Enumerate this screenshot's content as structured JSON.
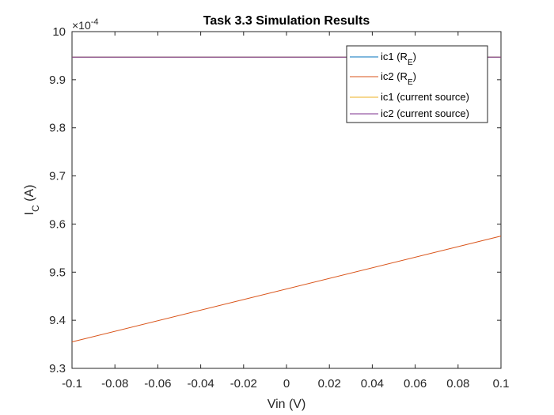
{
  "chart_data": {
    "type": "line",
    "title": "Task 3.3 Simulation Results",
    "xlabel": "Vin (V)",
    "ylabel": {
      "base": "I",
      "sub": "C",
      "rest": " (A)"
    },
    "exponent_label": {
      "prefix": "×10",
      "power": "-4"
    },
    "xlim": [
      -0.1,
      0.1
    ],
    "ylim": [
      9.3,
      10.0
    ],
    "x_ticks": [
      -0.1,
      -0.08,
      -0.06,
      -0.04,
      -0.02,
      0,
      0.02,
      0.04,
      0.06,
      0.08,
      0.1
    ],
    "x_tick_labels": [
      "-0.1",
      "-0.08",
      "-0.06",
      "-0.04",
      "-0.02",
      "0",
      "0.02",
      "0.04",
      "0.06",
      "0.08",
      "0.1"
    ],
    "y_ticks": [
      9.3,
      9.4,
      9.5,
      9.6,
      9.7,
      9.8,
      9.9,
      10.0
    ],
    "y_tick_labels": [
      "9.3",
      "9.4",
      "9.5",
      "9.6",
      "9.7",
      "9.8",
      "9.9",
      "10"
    ],
    "grid": false,
    "legend_position": "top-right",
    "series": [
      {
        "name": "ic1 (R_E)",
        "label_parts": {
          "base": "ic1 (R",
          "sub": "E",
          "rest": ")"
        },
        "color": "#0072BD",
        "x": [
          -0.1,
          0.1
        ],
        "y": [
          9.947,
          9.947
        ]
      },
      {
        "name": "ic2 (R_E)",
        "label_parts": {
          "base": "ic2 (R",
          "sub": "E",
          "rest": ")"
        },
        "color": "#D95319",
        "x": [
          -0.1,
          0.1
        ],
        "y": [
          9.355,
          9.575
        ]
      },
      {
        "name": "ic1 (current source)",
        "label_parts": {
          "base": "ic1 (current source)",
          "sub": "",
          "rest": ""
        },
        "color": "#EDB120",
        "x": [
          -0.1,
          0.1
        ],
        "y": [
          9.947,
          9.947
        ]
      },
      {
        "name": "ic2 (current source)",
        "label_parts": {
          "base": "ic2 (current source)",
          "sub": "",
          "rest": ""
        },
        "color": "#7E2F8E",
        "x": [
          -0.1,
          0.1
        ],
        "y": [
          9.947,
          9.947
        ]
      }
    ]
  }
}
